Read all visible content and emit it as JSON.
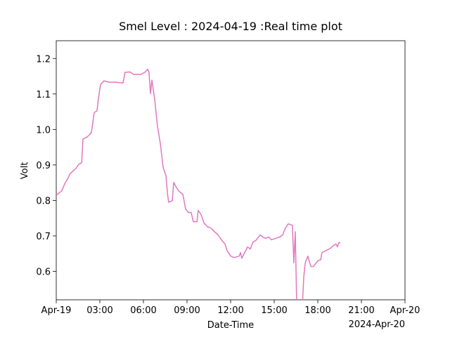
{
  "chart_data": {
    "type": "line",
    "title": "Smel Level : 2024-04-19 :Real time plot",
    "x_label": "Date-Time",
    "y_label": "Volt",
    "x_offset_label": "2024-Apr-20",
    "color": "#e377c2",
    "x": [
      "00:00",
      "00:23",
      "00:35",
      "00:46",
      "00:58",
      "01:21",
      "01:33",
      "01:45",
      "01:50",
      "02:08",
      "02:25",
      "02:37",
      "02:48",
      "02:54",
      "03:03",
      "03:17",
      "03:38",
      "04:07",
      "04:36",
      "04:44",
      "05:05",
      "05:19",
      "05:48",
      "06:06",
      "06:17",
      "06:23",
      "06:29",
      "06:35",
      "06:46",
      "06:58",
      "07:10",
      "07:21",
      "07:33",
      "07:39",
      "07:44",
      "07:59",
      "08:05",
      "08:14",
      "08:25",
      "08:43",
      "08:54",
      "09:06",
      "09:17",
      "09:26",
      "09:41",
      "09:46",
      "09:58",
      "10:10",
      "10:24",
      "10:39",
      "10:53",
      "11:08",
      "11:22",
      "11:37",
      "11:45",
      "12:00",
      "12:14",
      "12:35",
      "12:41",
      "12:46",
      "12:58",
      "13:10",
      "13:21",
      "13:33",
      "13:44",
      "14:02",
      "14:13",
      "14:25",
      "14:37",
      "14:48",
      "15:06",
      "15:23",
      "15:35",
      "15:46",
      "15:58",
      "16:15",
      "16:21",
      "16:27",
      "16:33",
      "16:56",
      "17:02",
      "17:08",
      "17:19",
      "17:31",
      "17:42",
      "18:00",
      "18:12",
      "18:17",
      "18:29",
      "18:41",
      "18:52",
      "19:04",
      "19:15",
      "19:21",
      "19:27",
      "19:33"
    ],
    "values": [
      0.815,
      0.827,
      0.847,
      0.86,
      0.876,
      0.89,
      0.902,
      0.906,
      0.973,
      0.979,
      0.991,
      1.048,
      1.052,
      1.087,
      1.127,
      1.137,
      1.133,
      1.133,
      1.131,
      1.161,
      1.162,
      1.155,
      1.155,
      1.161,
      1.17,
      1.161,
      1.101,
      1.139,
      1.087,
      1.009,
      0.959,
      0.894,
      0.87,
      0.821,
      0.795,
      0.799,
      0.851,
      0.839,
      0.827,
      0.817,
      0.776,
      0.766,
      0.766,
      0.74,
      0.74,
      0.772,
      0.76,
      0.736,
      0.726,
      0.722,
      0.712,
      0.703,
      0.689,
      0.677,
      0.659,
      0.643,
      0.639,
      0.643,
      0.653,
      0.637,
      0.653,
      0.669,
      0.663,
      0.683,
      0.687,
      0.703,
      0.697,
      0.693,
      0.697,
      0.689,
      0.693,
      0.697,
      0.703,
      0.722,
      0.734,
      0.73,
      0.624,
      0.712,
      0.5,
      0.5,
      0.584,
      0.624,
      0.643,
      0.614,
      0.614,
      0.63,
      0.633,
      0.653,
      0.657,
      0.661,
      0.665,
      0.673,
      0.677,
      0.669,
      0.681,
      0.681
    ],
    "xlim": [
      "00:00",
      "24:00"
    ],
    "xticks": [
      {
        "value": "00:00",
        "label": "Apr-19"
      },
      "03:00",
      "06:00",
      "09:00",
      "12:00",
      "15:00",
      "18:00",
      "21:00",
      {
        "value": "24:00",
        "label": "Apr-20"
      }
    ],
    "ylim": [
      0.52,
      1.25
    ],
    "yticks": [
      0.6,
      0.7,
      0.8,
      0.9,
      {
        "value": 1,
        "label": "1.0"
      },
      1.1,
      1.2
    ],
    "grid": false
  }
}
